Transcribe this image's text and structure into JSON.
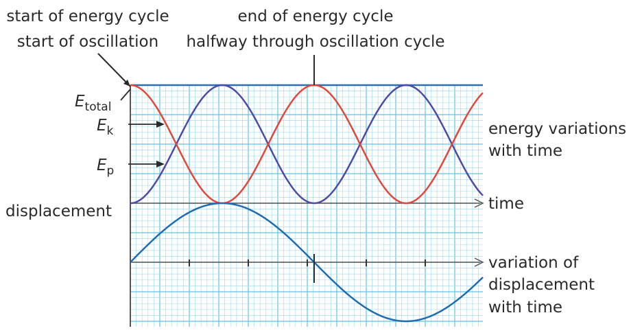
{
  "annotations": {
    "start_energy": "start of energy cycle",
    "start_osc": "start of oscillation",
    "end_energy": "end of energy cycle",
    "halfway": "halfway through oscillation cycle"
  },
  "energy_labels": {
    "total_main": "E",
    "total_sub": "total",
    "kinetic_main": "E",
    "kinetic_sub": "k",
    "potential_main": "E",
    "potential_sub": "p"
  },
  "axis_labels": {
    "displacement": "displacement",
    "time": "time",
    "energy_variations_1": "energy variations",
    "energy_variations_2": "with time",
    "disp_variation_1": "variation of",
    "disp_variation_2": "displacement",
    "disp_variation_3": "with time"
  },
  "colors": {
    "grid_minor": "#a8ddf0",
    "grid_major": "#5ec3e6",
    "total_line": "#2e6fb0",
    "kinetic": "#e1473a",
    "potential": "#4f4aa5",
    "displacement": "#1f6bb0",
    "axis": "#555555"
  },
  "chart_data": {
    "type": "line",
    "energy_peak_period_fraction": 0.5,
    "series": [
      {
        "name": "E total",
        "curve": "constant",
        "value": 1.0
      },
      {
        "name": "E k",
        "curve": "cos^2",
        "start_value": 1.0
      },
      {
        "name": "E p",
        "curve": "sin^2",
        "start_value": 0.0
      }
    ],
    "displacement_curve": "sine",
    "displacement_cycles_shown": 0.75
  }
}
